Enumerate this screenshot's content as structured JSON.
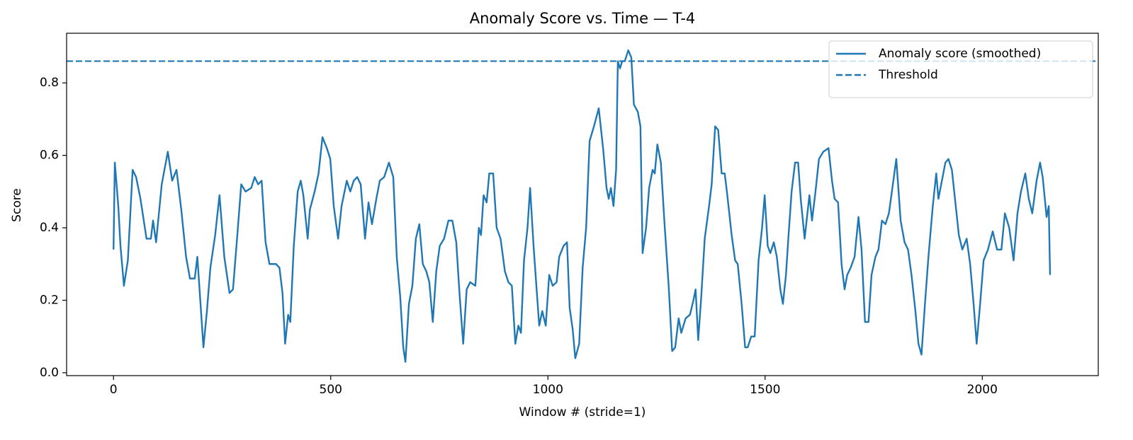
{
  "chart_data": {
    "type": "line",
    "title": "Anomaly Score vs. Time — T-4",
    "xlabel": "Window # (stride=1)",
    "ylabel": "Score",
    "x": [
      0,
      3,
      11,
      16,
      24,
      33,
      44,
      52,
      62,
      76,
      86,
      91,
      98,
      111,
      125,
      135,
      145,
      156,
      167,
      176,
      187,
      193,
      207,
      215,
      223,
      234,
      244,
      255,
      267,
      275,
      285,
      294,
      304,
      317,
      325,
      333,
      341,
      350,
      359,
      374,
      382,
      389,
      395,
      402,
      407,
      415,
      424,
      431,
      437,
      447,
      452,
      463,
      472,
      481,
      491,
      499,
      507,
      517,
      525,
      537,
      545,
      553,
      561,
      569,
      579,
      587,
      595,
      605,
      613,
      623,
      634,
      644,
      652,
      660,
      667,
      672,
      680,
      688,
      696,
      704,
      712,
      720,
      727,
      735,
      743,
      751,
      761,
      771,
      780,
      789,
      797,
      805,
      813,
      821,
      833,
      841,
      846,
      852,
      859,
      865,
      874,
      882,
      891,
      901,
      909,
      917,
      925,
      932,
      938,
      945,
      953,
      959,
      967,
      974,
      980,
      987,
      995,
      1003,
      1011,
      1020,
      1026,
      1036,
      1044,
      1050,
      1057,
      1063,
      1072,
      1080,
      1088,
      1096,
      1106,
      1117,
      1127,
      1135,
      1140,
      1145,
      1151,
      1157,
      1161,
      1166,
      1171,
      1177,
      1185,
      1192,
      1198,
      1207,
      1213,
      1218,
      1226,
      1233,
      1241,
      1246,
      1252,
      1260,
      1268,
      1278,
      1286,
      1293,
      1301,
      1307,
      1317,
      1327,
      1335,
      1340,
      1346,
      1353,
      1361,
      1371,
      1377,
      1385,
      1392,
      1400,
      1407,
      1413,
      1423,
      1431,
      1437,
      1446,
      1454,
      1460,
      1468,
      1476,
      1485,
      1493,
      1499,
      1506,
      1512,
      1520,
      1527,
      1535,
      1541,
      1548,
      1554,
      1561,
      1569,
      1576,
      1582,
      1591,
      1602,
      1608,
      1616,
      1624,
      1634,
      1646,
      1654,
      1660,
      1668,
      1676,
      1683,
      1689,
      1697,
      1706,
      1715,
      1722,
      1730,
      1738,
      1745,
      1754,
      1761,
      1769,
      1777,
      1785,
      1793,
      1802,
      1812,
      1821,
      1829,
      1837,
      1846,
      1853,
      1860,
      1868,
      1876,
      1886,
      1894,
      1899,
      1907,
      1915,
      1922,
      1930,
      1938,
      1946,
      1954,
      1964,
      1972,
      1980,
      1987,
      1995,
      2003,
      2013,
      2024,
      2034,
      2044,
      2052,
      2062,
      2072,
      2081,
      2089,
      2099,
      2107,
      2115,
      2125,
      2133,
      2139,
      2148,
      2153,
      2156
    ],
    "series": [
      {
        "name": "Anomaly score (smoothed)",
        "color": "#1f77b4",
        "values": [
          0.34,
          0.58,
          0.46,
          0.35,
          0.24,
          0.31,
          0.56,
          0.54,
          0.48,
          0.37,
          0.37,
          0.42,
          0.36,
          0.52,
          0.61,
          0.53,
          0.56,
          0.45,
          0.32,
          0.26,
          0.26,
          0.32,
          0.07,
          0.17,
          0.29,
          0.38,
          0.49,
          0.32,
          0.22,
          0.23,
          0.38,
          0.52,
          0.5,
          0.51,
          0.54,
          0.52,
          0.53,
          0.36,
          0.3,
          0.3,
          0.29,
          0.22,
          0.08,
          0.16,
          0.14,
          0.35,
          0.5,
          0.53,
          0.49,
          0.37,
          0.45,
          0.5,
          0.55,
          0.65,
          0.62,
          0.59,
          0.46,
          0.37,
          0.46,
          0.53,
          0.5,
          0.53,
          0.54,
          0.52,
          0.37,
          0.47,
          0.41,
          0.48,
          0.53,
          0.54,
          0.58,
          0.54,
          0.32,
          0.21,
          0.07,
          0.03,
          0.19,
          0.24,
          0.37,
          0.41,
          0.3,
          0.28,
          0.25,
          0.14,
          0.28,
          0.35,
          0.37,
          0.42,
          0.42,
          0.36,
          0.21,
          0.08,
          0.23,
          0.25,
          0.24,
          0.4,
          0.38,
          0.49,
          0.47,
          0.55,
          0.55,
          0.4,
          0.37,
          0.28,
          0.25,
          0.24,
          0.08,
          0.13,
          0.11,
          0.31,
          0.4,
          0.51,
          0.35,
          0.23,
          0.13,
          0.17,
          0.13,
          0.27,
          0.24,
          0.25,
          0.32,
          0.35,
          0.36,
          0.18,
          0.12,
          0.04,
          0.08,
          0.29,
          0.4,
          0.64,
          0.68,
          0.73,
          0.62,
          0.51,
          0.48,
          0.51,
          0.46,
          0.56,
          0.86,
          0.84,
          0.86,
          0.86,
          0.89,
          0.87,
          0.74,
          0.72,
          0.68,
          0.33,
          0.4,
          0.51,
          0.56,
          0.55,
          0.63,
          0.58,
          0.42,
          0.24,
          0.06,
          0.07,
          0.15,
          0.11,
          0.15,
          0.16,
          0.2,
          0.23,
          0.09,
          0.21,
          0.37,
          0.46,
          0.52,
          0.68,
          0.67,
          0.55,
          0.55,
          0.49,
          0.38,
          0.31,
          0.3,
          0.19,
          0.07,
          0.07,
          0.1,
          0.1,
          0.31,
          0.4,
          0.49,
          0.35,
          0.33,
          0.36,
          0.32,
          0.23,
          0.19,
          0.27,
          0.38,
          0.5,
          0.58,
          0.58,
          0.48,
          0.37,
          0.49,
          0.42,
          0.5,
          0.59,
          0.61,
          0.62,
          0.53,
          0.48,
          0.47,
          0.3,
          0.23,
          0.27,
          0.29,
          0.32,
          0.43,
          0.34,
          0.14,
          0.14,
          0.27,
          0.32,
          0.34,
          0.42,
          0.41,
          0.44,
          0.51,
          0.59,
          0.42,
          0.36,
          0.34,
          0.27,
          0.17,
          0.08,
          0.05,
          0.19,
          0.32,
          0.46,
          0.55,
          0.48,
          0.53,
          0.58,
          0.59,
          0.56,
          0.47,
          0.38,
          0.34,
          0.37,
          0.3,
          0.19,
          0.08,
          0.19,
          0.31,
          0.34,
          0.39,
          0.34,
          0.34,
          0.44,
          0.4,
          0.31,
          0.44,
          0.5,
          0.55,
          0.48,
          0.44,
          0.53,
          0.58,
          0.54,
          0.43,
          0.46,
          0.27
        ]
      }
    ],
    "threshold": {
      "name": "Threshold",
      "value": 0.86,
      "color": "#1f77b4",
      "style": "dashed"
    },
    "xlim": [
      -108,
      2267
    ],
    "ylim": [
      -0.008,
      0.937
    ],
    "xticks": [
      0,
      500,
      1000,
      1500,
      2000
    ],
    "yticks": [
      {
        "value": 0,
        "label": "0.0"
      },
      0.2,
      0.4,
      0.6,
      0.8
    ],
    "legend": "upper right",
    "grid": false
  }
}
